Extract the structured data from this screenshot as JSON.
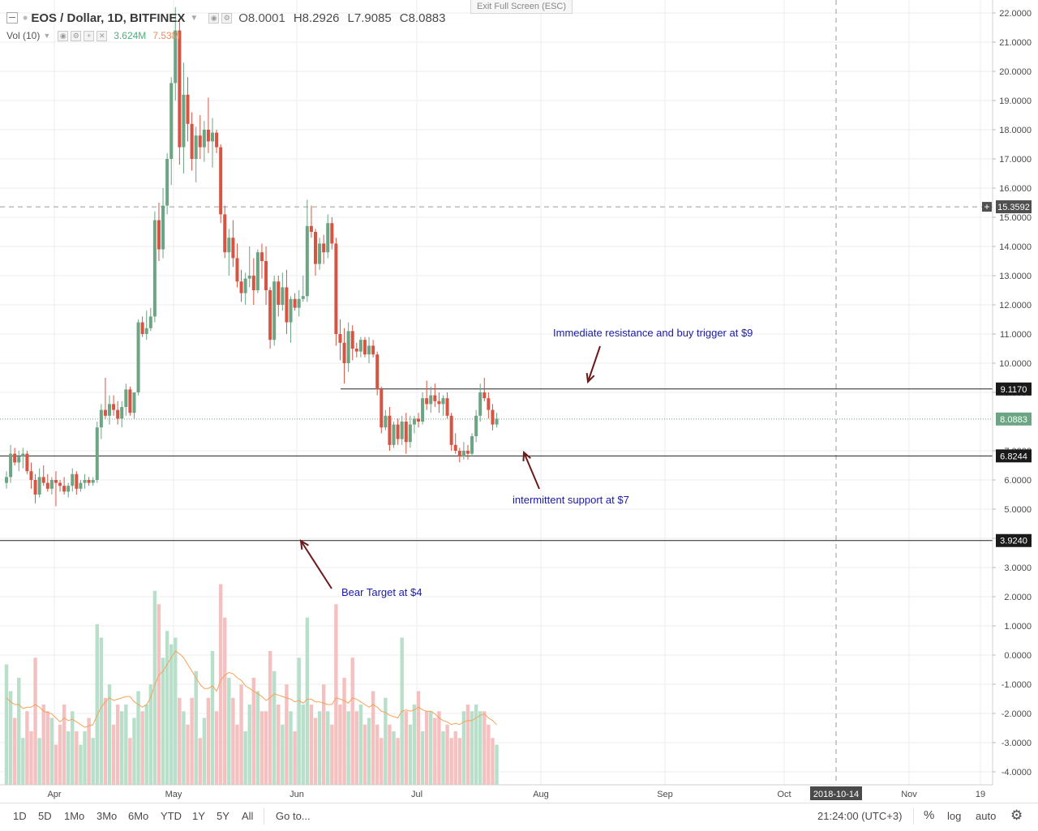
{
  "header": {
    "title": "EOS / Dollar, 1D, BITFINEX",
    "open": "O8.0001",
    "high": "H8.2926",
    "low": "L7.9085",
    "close": "C8.0883",
    "exit_fullscreen": "Exit Full Screen (ESC)"
  },
  "volume_header": {
    "label": "Vol (10)",
    "value1": "3.624M",
    "value2": "7.53M"
  },
  "colors": {
    "up": "#6ba583",
    "down": "#d75442",
    "up_vol": "#b7dfc9",
    "down_vol": "#f5c0c0",
    "ma_line": "#f5a25a",
    "annotation_text": "#1a1aa6",
    "arrow": "#6b1a1a"
  },
  "toolbar": {
    "ranges": [
      "1D",
      "5D",
      "1Mo",
      "3Mo",
      "6Mo",
      "YTD",
      "1Y",
      "5Y",
      "All"
    ],
    "goto": "Go to...",
    "time": "21:24:00 (UTC+3)",
    "percent": "%",
    "log": "log",
    "auto": "auto"
  },
  "chart_data": {
    "type": "candlestick",
    "title": "EOS / Dollar, 1D, BITFINEX",
    "y_axis_labels": [
      "22.0000",
      "21.0000",
      "20.0000",
      "19.0000",
      "18.0000",
      "17.0000",
      "16.0000",
      "15.0000",
      "14.0000",
      "13.0000",
      "12.0000",
      "11.0000",
      "10.0000",
      "9.0000",
      "7.0000",
      "6.0000",
      "5.0000",
      "4.0000",
      "3.0000",
      "2.0000",
      "1.0000",
      "0.0000",
      "-1.0000",
      "-2.0000",
      "-3.0000",
      "-4.0000"
    ],
    "x_axis_labels": [
      "Apr",
      "May",
      "Jun",
      "Jul",
      "Aug",
      "Sep",
      "Oct",
      "2018-10-14",
      "Nov",
      "19"
    ],
    "ylim": [
      -4.2,
      22.3
    ],
    "price_badges": [
      {
        "label": "15.3592",
        "value": 15.3592,
        "style": "crosshair"
      },
      {
        "label": "9.1170",
        "value": 9.117,
        "style": "line"
      },
      {
        "label": "8.0883",
        "value": 8.0883,
        "style": "last"
      },
      {
        "label": "6.8244",
        "value": 6.8244,
        "style": "line"
      },
      {
        "label": "3.9240",
        "value": 3.924,
        "style": "line"
      }
    ],
    "horizontal_lines": [
      9.117,
      6.8244,
      3.924
    ],
    "annotations": [
      {
        "text": "Immediate resistance and buy trigger at $9"
      },
      {
        "text": "intermittent support at $7"
      },
      {
        "text": "Bear Target at $4"
      }
    ],
    "candles": [
      [
        5.9,
        6.3,
        5.7,
        6.1
      ],
      [
        6.1,
        7.2,
        5.9,
        6.9
      ],
      [
        6.9,
        7.1,
        6.5,
        6.6
      ],
      [
        6.6,
        7.0,
        6.3,
        6.8
      ],
      [
        6.8,
        7.1,
        6.4,
        6.9
      ],
      [
        6.9,
        7.0,
        6.2,
        6.3
      ],
      [
        6.3,
        6.6,
        5.7,
        6.0
      ],
      [
        6.0,
        6.2,
        5.2,
        5.5
      ],
      [
        5.5,
        6.4,
        5.4,
        6.1
      ],
      [
        6.1,
        6.5,
        5.8,
        5.9
      ],
      [
        5.9,
        6.2,
        5.6,
        5.7
      ],
      [
        5.7,
        6.1,
        5.5,
        6.0
      ],
      [
        6.0,
        6.3,
        5.1,
        5.9
      ],
      [
        5.9,
        6.0,
        5.6,
        5.8
      ],
      [
        5.8,
        6.1,
        5.5,
        5.6
      ],
      [
        5.6,
        5.9,
        5.4,
        5.8
      ],
      [
        5.8,
        6.4,
        5.6,
        6.2
      ],
      [
        6.2,
        6.3,
        5.5,
        5.7
      ],
      [
        5.7,
        6.0,
        5.6,
        5.9
      ],
      [
        5.9,
        6.2,
        5.7,
        6.0
      ],
      [
        6.0,
        6.1,
        5.8,
        5.9
      ],
      [
        5.9,
        6.1,
        5.8,
        6.0
      ],
      [
        6.0,
        8.0,
        5.9,
        7.8
      ],
      [
        7.8,
        8.6,
        7.4,
        8.4
      ],
      [
        8.4,
        9.5,
        8.1,
        8.2
      ],
      [
        8.2,
        8.9,
        7.9,
        8.6
      ],
      [
        8.6,
        8.9,
        8.2,
        8.4
      ],
      [
        8.4,
        8.7,
        7.9,
        8.1
      ],
      [
        8.1,
        8.7,
        7.8,
        8.5
      ],
      [
        8.5,
        9.3,
        8.2,
        9.1
      ],
      [
        9.1,
        9.2,
        8.2,
        8.3
      ],
      [
        8.3,
        9.0,
        8.1,
        9.0
      ],
      [
        9.0,
        11.5,
        8.9,
        11.4
      ],
      [
        11.4,
        11.6,
        10.9,
        11.0
      ],
      [
        11.0,
        11.8,
        10.8,
        11.2
      ],
      [
        11.2,
        11.9,
        11.1,
        11.6
      ],
      [
        11.6,
        15.2,
        11.4,
        14.9
      ],
      [
        14.9,
        15.5,
        13.5,
        13.9
      ],
      [
        13.9,
        16.0,
        13.6,
        15.4
      ],
      [
        15.4,
        17.2,
        15.1,
        17.0
      ],
      [
        17.0,
        19.8,
        16.1,
        19.6
      ],
      [
        19.6,
        22.2,
        19.0,
        21.4
      ],
      [
        21.4,
        21.8,
        16.8,
        17.4
      ],
      [
        17.4,
        20.3,
        16.5,
        19.2
      ],
      [
        19.2,
        19.8,
        17.6,
        18.2
      ],
      [
        18.2,
        18.6,
        16.6,
        17.0
      ],
      [
        17.0,
        18.1,
        16.2,
        17.8
      ],
      [
        17.8,
        18.5,
        17.0,
        17.4
      ],
      [
        17.4,
        18.3,
        16.9,
        18.0
      ],
      [
        18.0,
        19.1,
        17.2,
        17.6
      ],
      [
        17.6,
        18.4,
        16.7,
        17.9
      ],
      [
        17.9,
        18.0,
        17.2,
        17.4
      ],
      [
        17.4,
        17.5,
        14.8,
        15.1
      ],
      [
        15.1,
        15.4,
        13.6,
        13.8
      ],
      [
        13.8,
        14.6,
        13.0,
        14.3
      ],
      [
        14.3,
        14.9,
        13.3,
        13.6
      ],
      [
        13.6,
        14.1,
        12.6,
        12.8
      ],
      [
        12.8,
        13.2,
        12.1,
        12.4
      ],
      [
        12.4,
        13.1,
        12.0,
        12.9
      ],
      [
        12.9,
        14.0,
        12.6,
        13.0
      ],
      [
        13.0,
        13.6,
        12.0,
        12.5
      ],
      [
        12.5,
        13.9,
        12.4,
        13.8
      ],
      [
        13.8,
        14.1,
        12.9,
        13.5
      ],
      [
        13.5,
        14.0,
        12.0,
        12.5
      ],
      [
        12.5,
        12.6,
        10.5,
        10.8
      ],
      [
        10.8,
        13.0,
        10.6,
        12.8
      ],
      [
        12.8,
        13.0,
        11.6,
        12.0
      ],
      [
        12.0,
        13.1,
        11.8,
        12.6
      ],
      [
        12.6,
        13.2,
        11.0,
        11.4
      ],
      [
        11.4,
        12.3,
        10.7,
        12.2
      ],
      [
        12.2,
        12.4,
        11.8,
        11.9
      ],
      [
        11.9,
        12.5,
        11.6,
        12.2
      ],
      [
        12.2,
        13.0,
        12.1,
        12.3
      ],
      [
        12.3,
        15.6,
        12.1,
        14.7
      ],
      [
        14.7,
        15.4,
        14.3,
        14.5
      ],
      [
        14.5,
        14.6,
        13.0,
        13.4
      ],
      [
        13.4,
        14.3,
        13.2,
        14.1
      ],
      [
        14.1,
        14.4,
        13.4,
        13.8
      ],
      [
        13.8,
        15.1,
        13.6,
        14.8
      ],
      [
        14.8,
        15.0,
        13.9,
        14.1
      ],
      [
        14.1,
        14.3,
        10.6,
        11.0
      ],
      [
        11.0,
        11.5,
        10.1,
        10.7
      ],
      [
        10.7,
        11.2,
        9.3,
        10.0
      ],
      [
        10.0,
        11.4,
        9.7,
        11.1
      ],
      [
        11.1,
        11.3,
        10.1,
        10.5
      ],
      [
        10.5,
        10.7,
        10.2,
        10.4
      ],
      [
        10.4,
        10.9,
        10.2,
        10.8
      ],
      [
        10.8,
        10.9,
        10.2,
        10.3
      ],
      [
        10.3,
        10.9,
        10.0,
        10.6
      ],
      [
        10.6,
        10.8,
        10.2,
        10.3
      ],
      [
        10.3,
        10.4,
        8.9,
        9.1
      ],
      [
        9.1,
        9.2,
        7.6,
        7.8
      ],
      [
        7.8,
        8.4,
        7.7,
        8.2
      ],
      [
        8.2,
        8.5,
        7.0,
        7.2
      ],
      [
        7.2,
        8.0,
        7.1,
        7.9
      ],
      [
        7.9,
        8.1,
        7.2,
        7.4
      ],
      [
        7.4,
        8.2,
        7.2,
        8.0
      ],
      [
        8.0,
        8.3,
        6.9,
        7.3
      ],
      [
        7.3,
        8.2,
        7.1,
        7.9
      ],
      [
        7.9,
        8.2,
        7.6,
        8.1
      ],
      [
        8.1,
        8.3,
        7.8,
        8.0
      ],
      [
        8.0,
        9.0,
        7.9,
        8.8
      ],
      [
        8.8,
        9.4,
        8.4,
        8.6
      ],
      [
        8.6,
        9.2,
        8.3,
        8.9
      ],
      [
        8.9,
        9.3,
        8.5,
        8.7
      ],
      [
        8.7,
        9.0,
        8.3,
        8.6
      ],
      [
        8.6,
        8.9,
        8.2,
        8.8
      ],
      [
        8.8,
        9.0,
        8.1,
        8.2
      ],
      [
        8.2,
        8.3,
        7.0,
        7.2
      ],
      [
        7.2,
        7.6,
        6.9,
        7.0
      ],
      [
        7.0,
        7.1,
        6.6,
        6.8
      ],
      [
        6.8,
        7.3,
        6.7,
        7.0
      ],
      [
        7.0,
        7.2,
        6.7,
        6.9
      ],
      [
        6.9,
        7.6,
        6.8,
        7.5
      ],
      [
        7.5,
        8.4,
        7.3,
        8.2
      ],
      [
        8.2,
        9.3,
        8.0,
        9.0
      ],
      [
        9.0,
        9.5,
        8.7,
        8.8
      ],
      [
        8.8,
        9.0,
        8.1,
        8.4
      ],
      [
        8.4,
        8.6,
        7.7,
        7.9
      ],
      [
        7.9,
        8.3,
        7.8,
        8.1
      ]
    ],
    "volume": [
      0.9,
      0.7,
      0.5,
      0.8,
      0.35,
      0.55,
      0.4,
      0.95,
      0.35,
      0.6,
      0.55,
      0.5,
      0.3,
      0.45,
      0.6,
      0.4,
      0.55,
      0.4,
      0.3,
      0.4,
      0.5,
      0.35,
      1.2,
      1.1,
      0.65,
      0.75,
      0.45,
      0.6,
      0.55,
      0.6,
      0.35,
      0.5,
      0.7,
      0.55,
      0.6,
      0.75,
      1.45,
      1.35,
      0.95,
      1.15,
      1.05,
      1.1,
      0.65,
      0.55,
      0.45,
      0.65,
      0.85,
      0.35,
      0.5,
      0.65,
      1.0,
      0.55,
      1.5,
      1.25,
      0.8,
      0.65,
      0.45,
      0.75,
      0.4,
      0.6,
      0.8,
      0.7,
      0.55,
      0.55,
      1.0,
      0.85,
      0.6,
      0.45,
      0.75,
      0.55,
      0.4,
      0.95,
      0.6,
      1.25,
      0.6,
      0.5,
      0.55,
      0.75,
      0.55,
      0.45,
      1.35,
      0.6,
      0.8,
      0.55,
      0.95,
      0.55,
      0.6,
      0.45,
      0.5,
      0.7,
      0.45,
      0.35,
      0.65,
      0.45,
      0.4,
      0.35,
      1.1,
      0.55,
      0.45,
      0.6,
      0.7,
      0.4,
      0.55,
      0.55,
      0.5,
      0.55,
      0.4,
      0.45,
      0.35,
      0.4,
      0.35,
      0.55,
      0.6,
      0.55,
      0.6,
      0.55,
      0.55,
      0.45,
      0.35,
      0.3
    ],
    "volume_ma": [
      0.65,
      0.62,
      0.6,
      0.6,
      0.57,
      0.58,
      0.58,
      0.6,
      0.58,
      0.55,
      0.54,
      0.53,
      0.5,
      0.47,
      0.5,
      0.48,
      0.49,
      0.47,
      0.45,
      0.43,
      0.44,
      0.45,
      0.52,
      0.58,
      0.62,
      0.65,
      0.63,
      0.64,
      0.65,
      0.66,
      0.66,
      0.62,
      0.6,
      0.58,
      0.6,
      0.65,
      0.75,
      0.82,
      0.85,
      0.9,
      0.95,
      1.0,
      0.98,
      0.95,
      0.9,
      0.85,
      0.8,
      0.75,
      0.72,
      0.72,
      0.74,
      0.7,
      0.78,
      0.82,
      0.84,
      0.83,
      0.8,
      0.78,
      0.74,
      0.72,
      0.7,
      0.68,
      0.66,
      0.63,
      0.65,
      0.68,
      0.67,
      0.66,
      0.65,
      0.64,
      0.62,
      0.63,
      0.61,
      0.64,
      0.64,
      0.62,
      0.62,
      0.61,
      0.6,
      0.6,
      0.65,
      0.64,
      0.63,
      0.61,
      0.65,
      0.64,
      0.62,
      0.6,
      0.58,
      0.6,
      0.58,
      0.55,
      0.54,
      0.52,
      0.51,
      0.5,
      0.55,
      0.56,
      0.55,
      0.56,
      0.58,
      0.56,
      0.55,
      0.55,
      0.53,
      0.5,
      0.48,
      0.47,
      0.45,
      0.46,
      0.45,
      0.47,
      0.48,
      0.48,
      0.5,
      0.52,
      0.53,
      0.5,
      0.48,
      0.45
    ]
  }
}
